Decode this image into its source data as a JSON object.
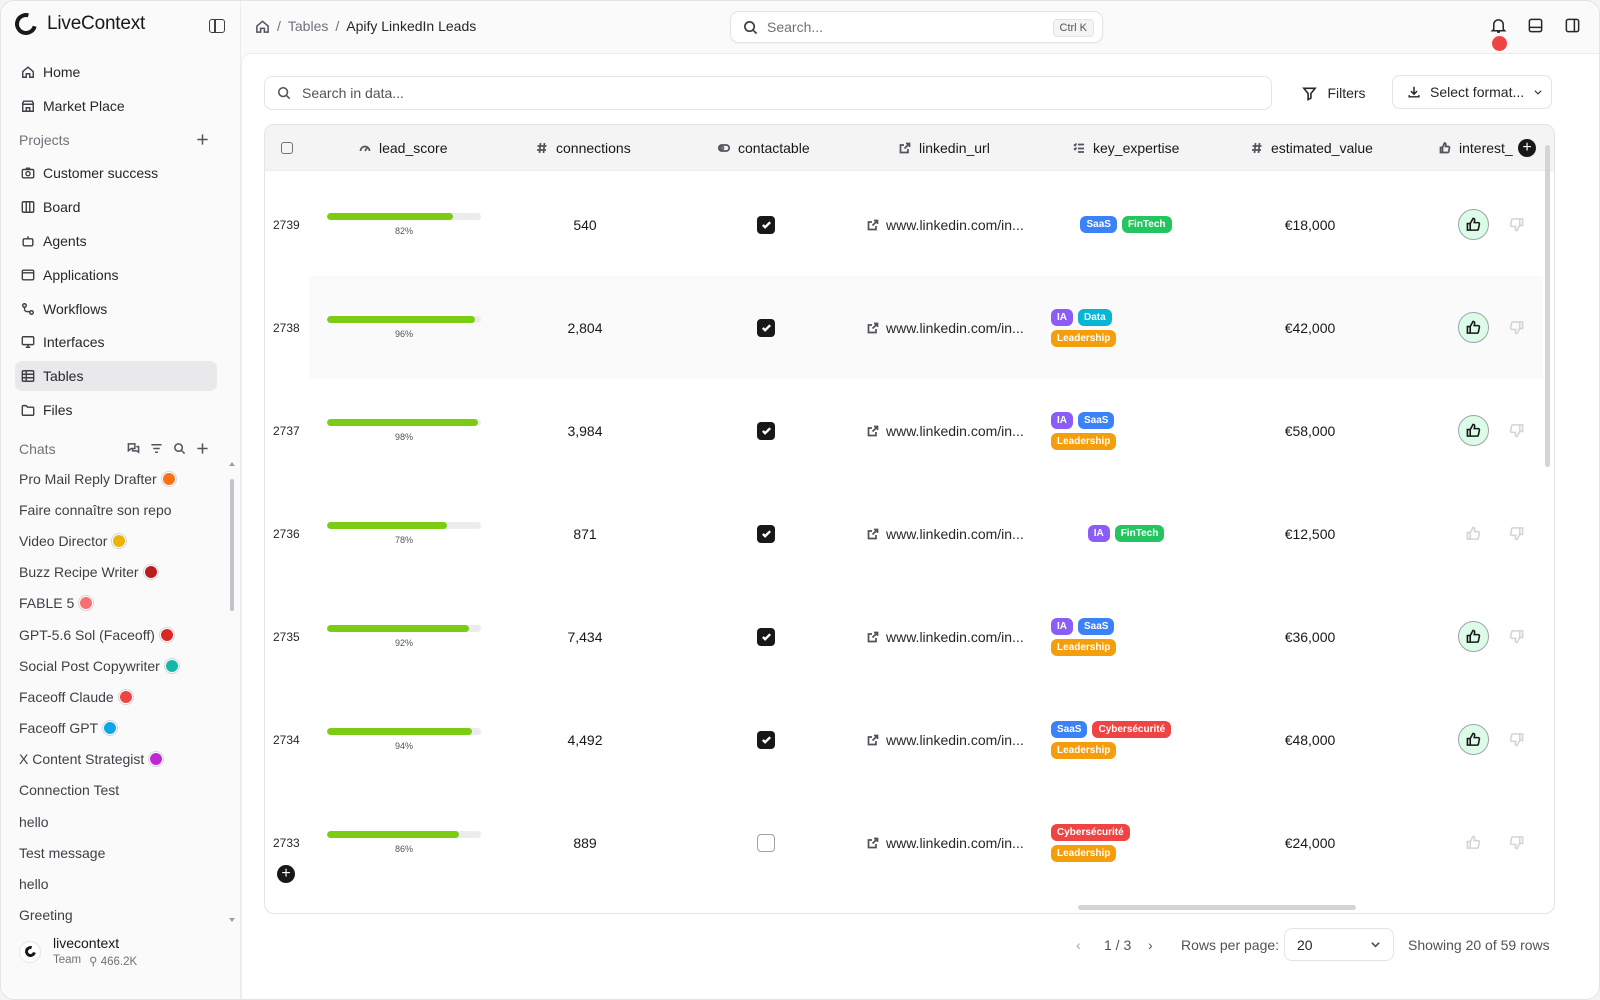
{
  "app": {
    "name": "LiveContext"
  },
  "breadcrumb": {
    "parent": "Tables",
    "current": "Apify LinkedIn Leads",
    "separator": "/"
  },
  "global_search": {
    "placeholder": "Search...",
    "shortcut": "Ctrl K"
  },
  "nav": {
    "home": "Home",
    "marketplace": "Market Place",
    "projects_label": "Projects",
    "items": [
      {
        "label": "Customer success",
        "icon": "camera-icon"
      },
      {
        "label": "Board",
        "icon": "columns-icon"
      },
      {
        "label": "Agents",
        "icon": "bot-icon"
      },
      {
        "label": "Applications",
        "icon": "window-icon"
      },
      {
        "label": "Workflows",
        "icon": "workflow-icon"
      },
      {
        "label": "Interfaces",
        "icon": "monitor-icon"
      },
      {
        "label": "Tables",
        "icon": "table-icon",
        "active": true
      },
      {
        "label": "Files",
        "icon": "folder-icon"
      }
    ]
  },
  "chats": {
    "label": "Chats",
    "items": [
      {
        "label": "Pro Mail Reply Drafter",
        "avatar_color": "#f97316"
      },
      {
        "label": "Faire connaître son repo"
      },
      {
        "label": "Video Director",
        "avatar_color": "#eab308"
      },
      {
        "label": "Buzz Recipe Writer",
        "avatar_color": "#b91c1c"
      },
      {
        "label": "FABLE 5",
        "avatar_color": "#f87171"
      },
      {
        "label": "GPT-5.6 Sol (Faceoff)",
        "avatar_color": "#dc2626"
      },
      {
        "label": "Social Post Copywriter",
        "avatar_color": "#14b8a6"
      },
      {
        "label": "Faceoff Claude",
        "avatar_color": "#ef4444"
      },
      {
        "label": "Faceoff GPT",
        "avatar_color": "#0ea5e9"
      },
      {
        "label": "X Content Strategist",
        "avatar_color": "#c026d3"
      },
      {
        "label": "Connection Test"
      },
      {
        "label": "hello"
      },
      {
        "label": "Test message"
      },
      {
        "label": "hello"
      },
      {
        "label": "Greeting"
      }
    ]
  },
  "user": {
    "name": "livecontext",
    "team": "Team",
    "credits": "466.2K"
  },
  "toolbar": {
    "data_search_placeholder": "Search in data...",
    "filters_label": "Filters",
    "format_label": "Select format..."
  },
  "columns": [
    "lead_score",
    "connections",
    "contactable",
    "linkedin_url",
    "key_expertise",
    "estimated_value",
    "interest_"
  ],
  "tag_colors": {
    "SaaS": "#3b82f6",
    "FinTech": "#22c55e",
    "IA": "#8b5cf6",
    "Data": "#06b6d4",
    "Leadership": "#f59e0b",
    "Cybersécurité": "#ef4444"
  },
  "rows": [
    {
      "id": "2739",
      "score": 82,
      "score_label": "82%",
      "connections": "540",
      "contactable": true,
      "url": "www.linkedin.com/in...",
      "tags": [
        [
          "SaaS",
          "FinTech"
        ]
      ],
      "value": "€18,000",
      "liked": true
    },
    {
      "id": "2738",
      "score": 96,
      "score_label": "96%",
      "connections": "2,804",
      "contactable": true,
      "url": "www.linkedin.com/in...",
      "tags": [
        [
          "IA",
          "Data"
        ],
        [
          "Leadership"
        ]
      ],
      "value": "€42,000",
      "liked": true
    },
    {
      "id": "2737",
      "score": 98,
      "score_label": "98%",
      "connections": "3,984",
      "contactable": true,
      "url": "www.linkedin.com/in...",
      "tags": [
        [
          "IA",
          "SaaS"
        ],
        [
          "Leadership"
        ]
      ],
      "value": "€58,000",
      "liked": true
    },
    {
      "id": "2736",
      "score": 78,
      "score_label": "78%",
      "connections": "871",
      "contactable": true,
      "url": "www.linkedin.com/in...",
      "tags": [
        [
          "IA",
          "FinTech"
        ]
      ],
      "value": "€12,500",
      "liked": false
    },
    {
      "id": "2735",
      "score": 92,
      "score_label": "92%",
      "connections": "7,434",
      "contactable": true,
      "url": "www.linkedin.com/in...",
      "tags": [
        [
          "IA",
          "SaaS"
        ],
        [
          "Leadership"
        ]
      ],
      "value": "€36,000",
      "liked": true
    },
    {
      "id": "2734",
      "score": 94,
      "score_label": "94%",
      "connections": "4,492",
      "contactable": true,
      "url": "www.linkedin.com/in...",
      "tags": [
        [
          "SaaS",
          "Cybersécurité"
        ],
        [
          "Leadership"
        ]
      ],
      "value": "€48,000",
      "liked": true
    },
    {
      "id": "2733",
      "score": 86,
      "score_label": "86%",
      "connections": "889",
      "contactable": false,
      "url": "www.linkedin.com/in...",
      "tags": [
        [
          "Cybersécurité"
        ],
        [
          "Leadership"
        ]
      ],
      "value": "€24,000",
      "liked": false
    }
  ],
  "pagination": {
    "page": "1 / 3",
    "rows_per_page_label": "Rows per page:",
    "rows_per_page": "20",
    "showing": "Showing 20 of 59 rows"
  }
}
